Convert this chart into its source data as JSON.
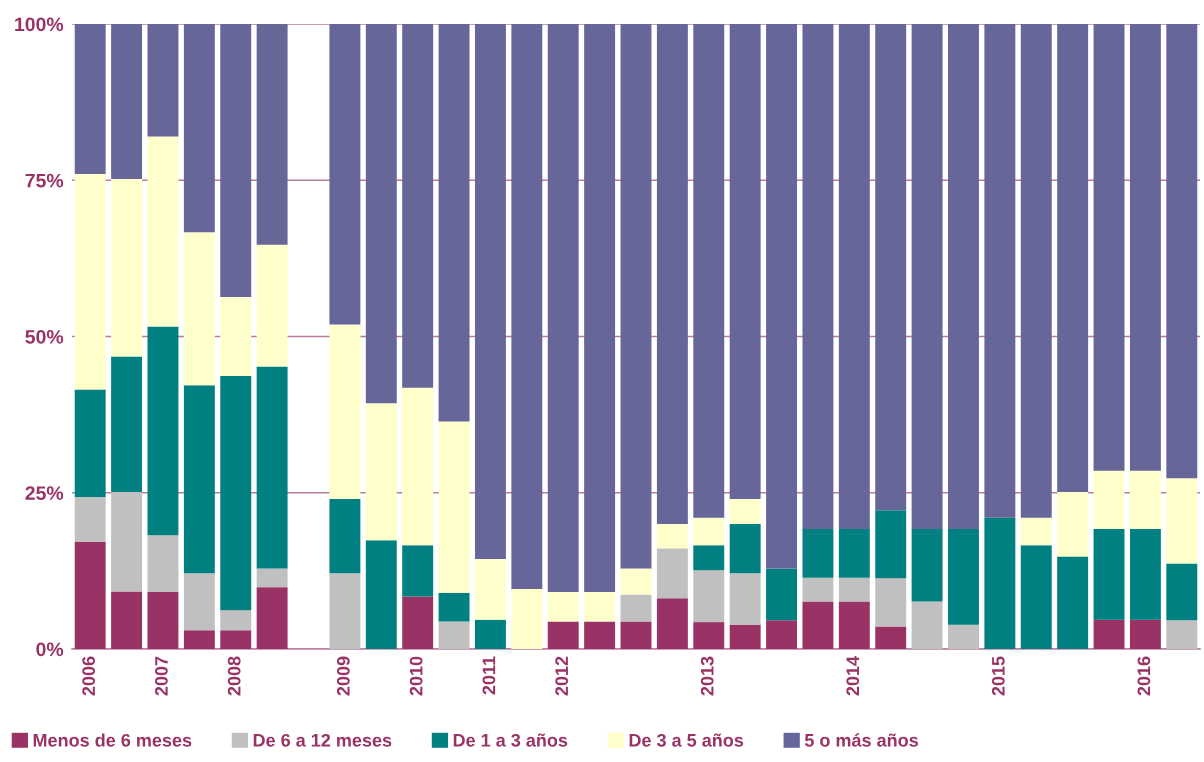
{
  "chart_data": {
    "type": "bar",
    "stacked": true,
    "categories": [
      "2006",
      null,
      "2007",
      null,
      "2008",
      null,
      null,
      "2009",
      null,
      "2010",
      null,
      "2011",
      null,
      "2012",
      null,
      null,
      null,
      "2013",
      null,
      null,
      null,
      "2014",
      null,
      null,
      null,
      "2015",
      null,
      null,
      null,
      "2016",
      null
    ],
    "series": [
      {
        "name": "Menos de 6 meses",
        "color": "#993366",
        "values": [
          17.1,
          9.2,
          9.1,
          3.0,
          3.0,
          9.9,
          null,
          0,
          0,
          8.4,
          0,
          0,
          0,
          4.4,
          4.4,
          4.4,
          8.1,
          4.3,
          3.9,
          4.6,
          7.6,
          7.6,
          3.6,
          0,
          0,
          0,
          0,
          0,
          4.7,
          4.7,
          0
        ]
      },
      {
        "name": "De 6 a 12 meses",
        "color": "#c0c0c0",
        "values": [
          7.2,
          15.9,
          9.1,
          9.1,
          3.2,
          3.0,
          null,
          12.1,
          0,
          0,
          4.4,
          0,
          0,
          0,
          0,
          4.3,
          8.0,
          8.3,
          8.2,
          0,
          3.8,
          3.8,
          7.7,
          7.6,
          3.9,
          0,
          0,
          0,
          0,
          0,
          4.6
        ]
      },
      {
        "name": "De 1 a 3 años",
        "color": "#008080",
        "values": [
          17.2,
          21.7,
          33.4,
          30.1,
          37.5,
          32.3,
          null,
          11.9,
          17.4,
          8.2,
          4.6,
          4.7,
          0,
          0,
          0,
          0,
          0,
          4.0,
          7.9,
          8.3,
          7.8,
          7.8,
          10.9,
          11.6,
          15.3,
          21.0,
          16.6,
          14.8,
          14.5,
          14.5,
          9.1
        ]
      },
      {
        "name": "De 3 a 5 años",
        "color": "#ffffcc",
        "values": [
          34.5,
          28.4,
          30.4,
          24.5,
          12.6,
          19.5,
          null,
          27.9,
          21.9,
          25.2,
          27.4,
          9.7,
          9.6,
          4.7,
          4.7,
          4.2,
          3.9,
          4.4,
          4.0,
          0,
          0,
          0,
          0,
          0,
          0,
          0,
          4.4,
          10.3,
          9.3,
          9.3,
          13.6
        ]
      },
      {
        "name": "5 o más años",
        "color": "#666699",
        "values": [
          24.0,
          24.8,
          18.0,
          33.3,
          43.7,
          35.3,
          null,
          48.1,
          60.7,
          58.2,
          63.6,
          85.6,
          90.4,
          90.9,
          90.9,
          87.1,
          80.0,
          79.0,
          76.0,
          87.1,
          80.8,
          80.8,
          77.8,
          80.8,
          80.8,
          79.0,
          79.0,
          74.9,
          71.5,
          71.5,
          72.7
        ]
      }
    ],
    "ylim": [
      0,
      100
    ],
    "yticks": [
      {
        "value": 0,
        "label": "0%"
      },
      {
        "value": 25,
        "label": "25%"
      },
      {
        "value": 50,
        "label": "50%"
      },
      {
        "value": 75,
        "label": "75%"
      },
      {
        "value": 100,
        "label": "100%"
      }
    ],
    "grid": "y",
    "legend": "bottom"
  }
}
